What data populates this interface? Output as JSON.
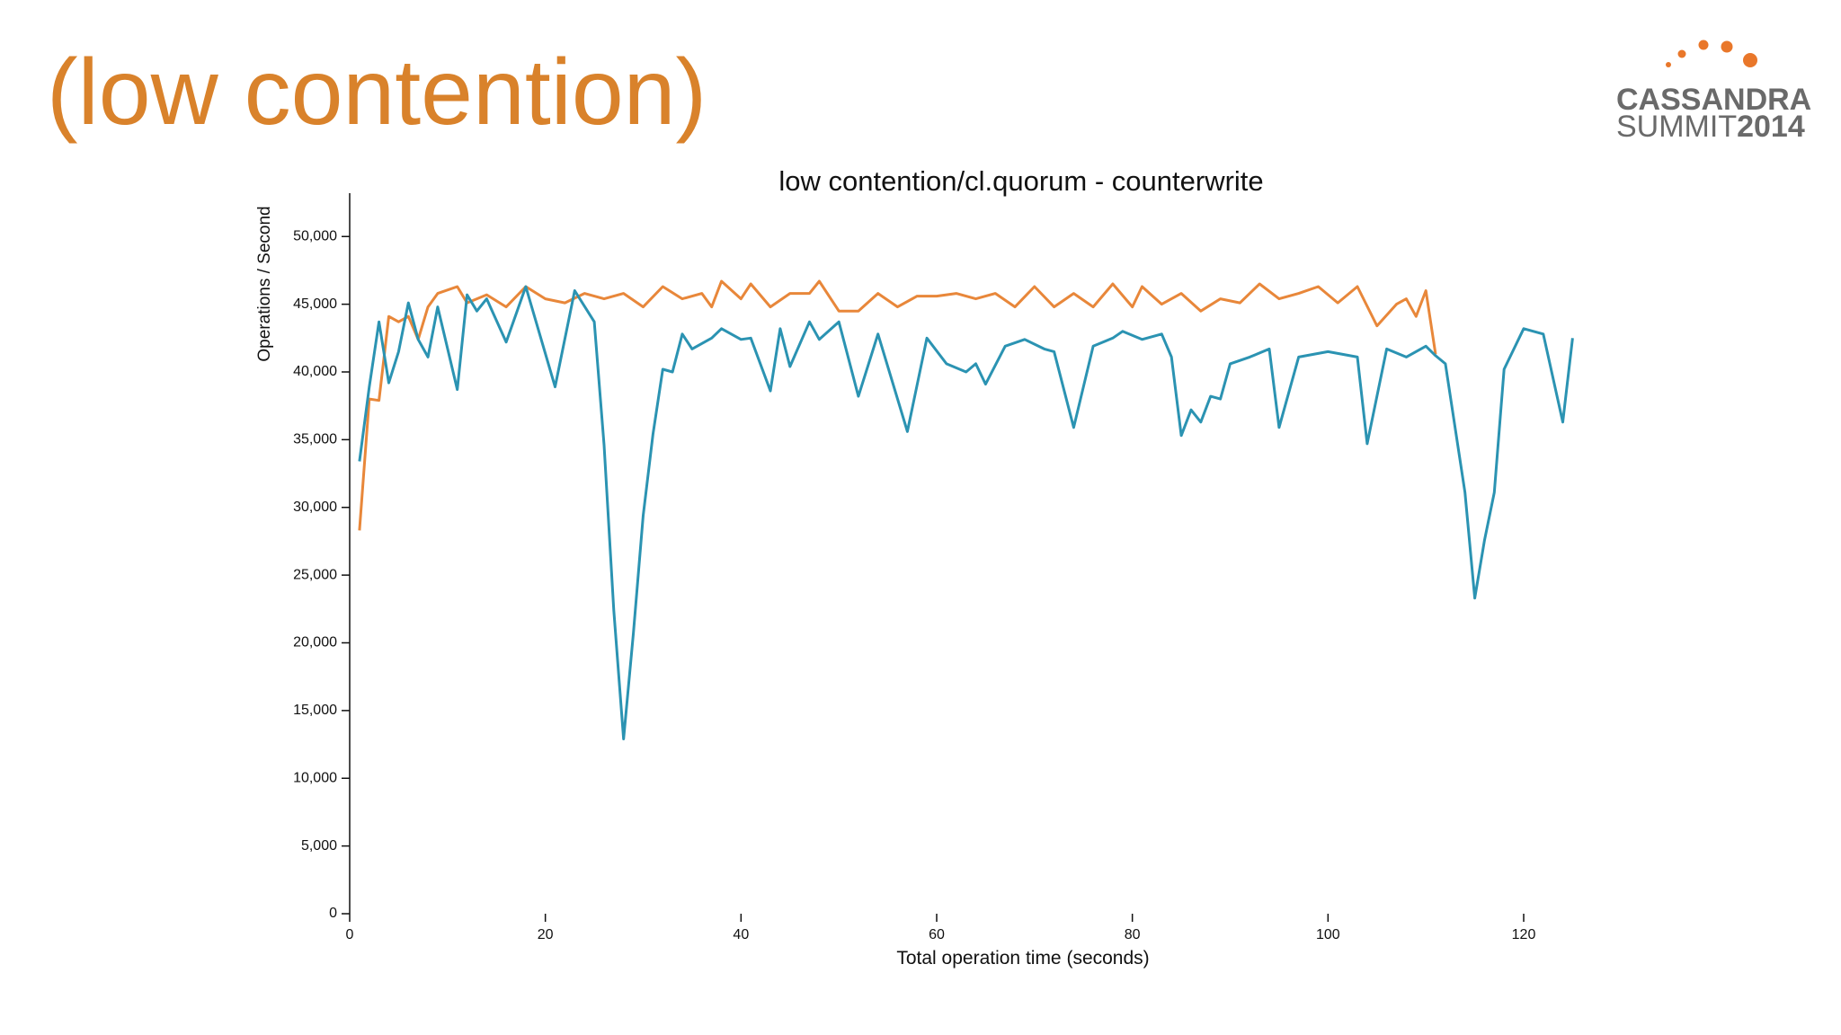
{
  "slide": {
    "title": "(low contention)",
    "logo": {
      "line1": "CASSANDRA",
      "line2a": "SUMMIT",
      "line2b": "2014"
    }
  },
  "chart_data": {
    "type": "line",
    "title": "low contention/cl.quorum - counterwrite",
    "x_label": "Total operation time (seconds)",
    "y_label": "Operations / Second",
    "xlim": [
      0,
      126
    ],
    "xticks": [
      0,
      20,
      40,
      60,
      80,
      100,
      120
    ],
    "ylim": [
      0,
      53200
    ],
    "yticks": [
      0,
      {
        "value": 5000,
        "label": "5,000"
      },
      {
        "value": 10000,
        "label": "10,000"
      },
      {
        "value": 15000,
        "label": "15,000"
      },
      {
        "value": 20000,
        "label": "20,000"
      },
      {
        "value": 25000,
        "label": "25,000"
      },
      {
        "value": 30000,
        "label": "30,000"
      },
      {
        "value": 35000,
        "label": "35,000"
      },
      {
        "value": 40000,
        "label": "40,000"
      },
      {
        "value": 45000,
        "label": "45,000"
      },
      {
        "value": 50000,
        "label": "50,000"
      }
    ],
    "grid": false,
    "series": [
      {
        "color": "#2b93b2",
        "x": [
          1,
          2,
          3,
          4,
          5,
          6,
          7,
          8,
          9,
          11,
          12,
          13,
          14,
          16,
          18,
          21,
          23,
          25,
          26,
          27,
          28,
          29,
          30,
          31,
          32,
          33,
          34,
          35,
          37,
          38,
          40,
          41,
          43,
          44,
          45,
          47,
          48,
          50,
          52,
          54,
          57,
          59,
          61,
          63,
          64,
          65,
          67,
          69,
          71,
          72,
          74,
          76,
          78,
          79,
          81,
          83,
          84,
          85,
          86,
          87,
          88,
          89,
          90,
          92,
          94,
          95,
          97,
          100,
          103,
          104,
          106,
          108,
          110,
          111,
          112,
          114,
          115,
          116,
          117,
          118,
          120,
          122,
          124,
          125
        ],
        "values": [
          33400,
          38900,
          43700,
          39200,
          41500,
          45100,
          42400,
          41100,
          44800,
          38700,
          45700,
          44500,
          45400,
          42200,
          46300,
          38900,
          46000,
          43700,
          34600,
          22400,
          12900,
          20700,
          29400,
          35400,
          40200,
          40000,
          42800,
          41700,
          42500,
          43200,
          42400,
          42500,
          38600,
          43200,
          40400,
          43700,
          42400,
          43700,
          38200,
          42800,
          35600,
          42500,
          40600,
          40000,
          40600,
          39100,
          41900,
          42400,
          41700,
          41500,
          35900,
          41900,
          42500,
          43000,
          42400,
          42800,
          41100,
          35300,
          37200,
          36300,
          38200,
          38000,
          40600,
          41100,
          41700,
          35900,
          41100,
          41500,
          41100,
          34700,
          41700,
          41100,
          41900,
          41200,
          40600,
          31100,
          23300,
          27600,
          31100,
          40200,
          43200,
          42800,
          36300,
          42500
        ]
      },
      {
        "color": "#e8873a",
        "x": [
          1,
          2,
          3,
          4,
          5,
          6,
          7,
          8,
          9,
          11,
          12,
          14,
          16,
          18,
          20,
          22,
          24,
          26,
          28,
          30,
          32,
          34,
          36,
          37,
          38,
          40,
          41,
          43,
          45,
          47,
          48,
          50,
          52,
          54,
          56,
          58,
          60,
          62,
          64,
          66,
          68,
          70,
          72,
          74,
          76,
          78,
          80,
          81,
          83,
          85,
          87,
          89,
          91,
          93,
          95,
          97,
          99,
          101,
          103,
          105,
          107,
          108,
          109,
          110,
          111
        ],
        "values": [
          28300,
          38000,
          37900,
          44100,
          43700,
          44100,
          42400,
          44800,
          45800,
          46300,
          45100,
          45700,
          44800,
          46300,
          45400,
          45100,
          45800,
          45400,
          45800,
          44800,
          46300,
          45400,
          45800,
          44800,
          46700,
          45400,
          46500,
          44800,
          45800,
          45800,
          46700,
          44500,
          44500,
          45800,
          44800,
          45600,
          45600,
          45800,
          45400,
          45800,
          44800,
          46300,
          44800,
          45800,
          44800,
          46500,
          44800,
          46300,
          45000,
          45800,
          44500,
          45400,
          45100,
          46500,
          45400,
          45800,
          46300,
          45100,
          46300,
          43400,
          45000,
          45400,
          44100,
          46000,
          41300
        ]
      }
    ]
  }
}
